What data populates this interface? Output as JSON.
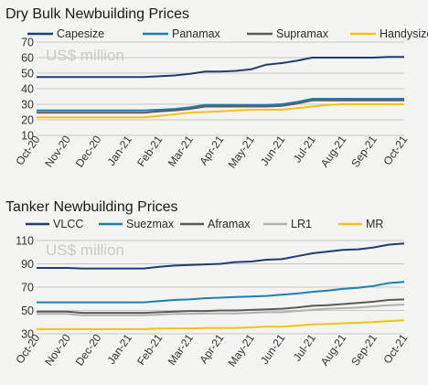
{
  "chart_data": [
    {
      "type": "line",
      "title": "Dry Bulk Newbuilding Prices",
      "unit_label": "US$ million",
      "ylim": [
        10,
        70
      ],
      "yticks": [
        10,
        20,
        30,
        40,
        50,
        60,
        70
      ],
      "grid": "horizontal",
      "legend": "top",
      "x": [
        "Oct-20",
        "Nov-20",
        "Dec-20",
        "Jan-21",
        "Feb-21",
        "Mar-21",
        "Apr-21",
        "May-21",
        "Jun-21",
        "Jul-21",
        "Aug-21",
        "Sep-21",
        "Oct-21"
      ],
      "x_values": [
        0,
        0.5,
        1,
        1.5,
        2,
        2.5,
        3,
        3.5,
        4,
        4.5,
        5,
        5.5,
        6,
        6.5,
        7,
        7.5,
        8,
        8.5,
        9,
        9.5,
        10,
        10.5,
        11,
        11.5,
        12
      ],
      "series": [
        {
          "name": "Capesize",
          "color": "#1f3e6e",
          "values": [
            47.5,
            47.5,
            47.5,
            47.5,
            47.5,
            47.5,
            47.5,
            47.5,
            48,
            48.5,
            49.5,
            51,
            51,
            51.5,
            52.5,
            55.5,
            56.5,
            58,
            60,
            60,
            60,
            60,
            60,
            60.5,
            60.5
          ]
        },
        {
          "name": "Panamax",
          "color": "#1f7fb0",
          "values": [
            26,
            26,
            26,
            26,
            26,
            26,
            26,
            26,
            26.5,
            27,
            28,
            29.5,
            29.5,
            29.5,
            29.5,
            29.5,
            30,
            31.5,
            33.5,
            33.5,
            33.5,
            33.5,
            33.5,
            33.5,
            33.5
          ]
        },
        {
          "name": "Supramax",
          "color": "#5b5b5b",
          "values": [
            24.5,
            24.5,
            24.5,
            24.5,
            24.5,
            24.5,
            24.5,
            24.5,
            25.5,
            26,
            27,
            28.5,
            28.5,
            28.5,
            28.5,
            28.5,
            29,
            30.5,
            32.5,
            32.5,
            32.5,
            32.5,
            32.5,
            32.5,
            32.5
          ]
        },
        {
          "name": "Handysize",
          "color": "#f2c21b",
          "values": [
            21.5,
            21.5,
            21.5,
            21.5,
            21.5,
            21.5,
            21.5,
            21.5,
            22.5,
            23.5,
            24.5,
            25,
            25.5,
            26,
            26.5,
            26.5,
            26.5,
            27.5,
            28.5,
            29.5,
            30,
            30,
            30,
            30,
            30
          ]
        }
      ]
    },
    {
      "type": "line",
      "title": "Tanker Newbuilding Prices",
      "unit_label": "US$ million",
      "ylim": [
        30,
        110
      ],
      "yticks": [
        30,
        50,
        70,
        90,
        110
      ],
      "grid": "horizontal",
      "legend": "top",
      "x": [
        "Oct-20",
        "Nov-20",
        "Dec-20",
        "Jan-21",
        "Feb-21",
        "Mar-21",
        "Apr-21",
        "May-21",
        "Jun-21",
        "Jul-21",
        "Aug-21",
        "Sep-21",
        "Oct-21"
      ],
      "x_values": [
        0,
        0.5,
        1,
        1.5,
        2,
        2.5,
        3,
        3.5,
        4,
        4.5,
        5,
        5.5,
        6,
        6.5,
        7,
        7.5,
        8,
        8.5,
        9,
        9.5,
        10,
        10.5,
        11,
        11.5,
        12
      ],
      "series": [
        {
          "name": "VLCC",
          "color": "#1f3e6e",
          "values": [
            86.5,
            86.5,
            86.5,
            86,
            86,
            86,
            86,
            86,
            87.5,
            88.5,
            89,
            89.5,
            90,
            91.5,
            92,
            93.5,
            94,
            96.5,
            99,
            100.5,
            102,
            102.5,
            104,
            106.5,
            107.5
          ]
        },
        {
          "name": "Suezmax",
          "color": "#1f7fb0",
          "values": [
            57,
            57,
            57,
            57,
            57,
            57,
            57,
            57,
            58,
            59,
            59.5,
            60.5,
            61,
            61.5,
            62,
            62.5,
            63.5,
            64.5,
            66,
            67,
            68.5,
            69.5,
            71,
            73.5,
            74.5
          ]
        },
        {
          "name": "Aframax",
          "color": "#5b5b5b",
          "values": [
            49,
            49,
            49,
            48,
            48,
            48,
            48,
            48,
            48.5,
            49,
            49.5,
            49.5,
            50,
            50,
            50.5,
            51,
            51.5,
            52.5,
            54,
            54.5,
            55.5,
            56.5,
            57.5,
            59,
            59.5
          ]
        },
        {
          "name": "LR1",
          "color": "#b0b0b0",
          "values": [
            47,
            47,
            47,
            46,
            46,
            46,
            46,
            46,
            46.5,
            47,
            47,
            47.5,
            47.5,
            47.5,
            48,
            48.5,
            48.5,
            49.5,
            50.5,
            51.5,
            52,
            52.5,
            53.5,
            54.5,
            55
          ]
        },
        {
          "name": "MR",
          "color": "#f2c21b",
          "values": [
            34,
            34,
            34,
            34,
            34,
            34,
            34,
            34,
            34.5,
            34.5,
            34.5,
            35,
            35,
            35,
            35.5,
            36,
            36,
            37,
            38,
            38.5,
            39,
            39.5,
            40,
            41,
            41.5
          ]
        }
      ]
    }
  ]
}
